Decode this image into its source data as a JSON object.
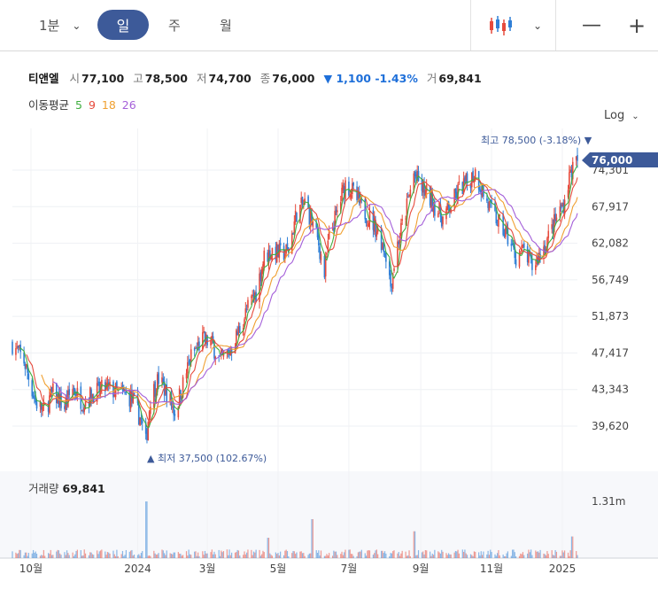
{
  "toolbar": {
    "interval": "1분",
    "period_day": "일",
    "period_week": "주",
    "period_month": "월",
    "chart_type_icon": "candlestick-icon",
    "zoom_out": "—",
    "zoom_in": "+"
  },
  "quote": {
    "name": "티앤엘",
    "open_label": "시",
    "open": "77,100",
    "high_label": "고",
    "high": "78,500",
    "low_label": "저",
    "low": "74,700",
    "close_label": "종",
    "close": "76,000",
    "change": "▼ 1,100 -1.43%",
    "volume_label": "거",
    "volume": "69,841"
  },
  "ma": {
    "label": "이동평균",
    "periods": [
      "5",
      "9",
      "18",
      "26"
    ],
    "colors": [
      "#3fae3f",
      "#e64a3c",
      "#f0a030",
      "#a45fd9"
    ]
  },
  "scale": "Log",
  "colors": {
    "up": "#e64a3c",
    "down": "#2f7fd6",
    "accent": "#3d5a99"
  },
  "annotations": {
    "high": "최고 78,500 (-3.18%) ▼",
    "low": "▲ 최저 37,500 (102.67%)",
    "last_price": "76,000"
  },
  "volume_panel": {
    "label": "거래량",
    "value": "69,841",
    "axis_max": "1.31m"
  },
  "chart_data": {
    "type": "candlestick",
    "title": "",
    "log_scale": true,
    "y_ticks": [
      39620,
      43343,
      47417,
      51873,
      56749,
      62082,
      67917,
      74301
    ],
    "y_tick_labels": [
      "39,620",
      "43,343",
      "47,417",
      "51,873",
      "56,749",
      "62,082",
      "67,917",
      "74,301"
    ],
    "x_labels": [
      "10월",
      "2024",
      "3월",
      "5월",
      "7월",
      "9월",
      "11월",
      "2025"
    ],
    "x_label_dates": [
      "2023-10-01",
      "2024-01-01",
      "2024-03-01",
      "2024-05-01",
      "2024-07-01",
      "2024-09-01",
      "2024-11-01",
      "2025-01-01"
    ],
    "date_range": [
      "2023-09-15",
      "2025-01-14"
    ],
    "close_points": [
      [
        "2023-09-15",
        48500
      ],
      [
        "2023-09-25",
        46500
      ],
      [
        "2023-10-05",
        42000
      ],
      [
        "2023-10-12",
        41200
      ],
      [
        "2023-10-20",
        43000
      ],
      [
        "2023-10-30",
        41500
      ],
      [
        "2023-11-06",
        43500
      ],
      [
        "2023-11-15",
        42000
      ],
      [
        "2023-11-24",
        43000
      ],
      [
        "2023-12-05",
        43500
      ],
      [
        "2023-12-15",
        43000
      ],
      [
        "2023-12-26",
        42500
      ],
      [
        "2024-01-03",
        40500
      ],
      [
        "2024-01-08",
        38000
      ],
      [
        "2024-01-12",
        42500
      ],
      [
        "2024-01-19",
        44500
      ],
      [
        "2024-01-26",
        43000
      ],
      [
        "2024-02-02",
        41000
      ],
      [
        "2024-02-08",
        43500
      ],
      [
        "2024-02-16",
        47000
      ],
      [
        "2024-02-26",
        49000
      ],
      [
        "2024-03-05",
        48500
      ],
      [
        "2024-03-12",
        46500
      ],
      [
        "2024-03-20",
        47500
      ],
      [
        "2024-03-28",
        50000
      ],
      [
        "2024-04-05",
        53000
      ],
      [
        "2024-04-12",
        55000
      ],
      [
        "2024-04-19",
        60000
      ],
      [
        "2024-04-26",
        61000
      ],
      [
        "2024-05-03",
        60500
      ],
      [
        "2024-05-10",
        61000
      ],
      [
        "2024-05-17",
        67000
      ],
      [
        "2024-05-24",
        68500
      ],
      [
        "2024-05-31",
        65000
      ],
      [
        "2024-06-05",
        62000
      ],
      [
        "2024-06-10",
        57500
      ],
      [
        "2024-06-14",
        63000
      ],
      [
        "2024-06-21",
        67000
      ],
      [
        "2024-06-28",
        72000
      ],
      [
        "2024-07-04",
        70500
      ],
      [
        "2024-07-11",
        68000
      ],
      [
        "2024-07-19",
        66000
      ],
      [
        "2024-07-26",
        64000
      ],
      [
        "2024-08-02",
        60500
      ],
      [
        "2024-08-06",
        56000
      ],
      [
        "2024-08-12",
        62000
      ],
      [
        "2024-08-19",
        67000
      ],
      [
        "2024-08-26",
        73500
      ],
      [
        "2024-09-02",
        71000
      ],
      [
        "2024-09-10",
        69000
      ],
      [
        "2024-09-20",
        66000
      ],
      [
        "2024-09-27",
        68000
      ],
      [
        "2024-10-04",
        71000
      ],
      [
        "2024-10-11",
        72000
      ],
      [
        "2024-10-18",
        74000
      ],
      [
        "2024-10-25",
        70000
      ],
      [
        "2024-11-01",
        67000
      ],
      [
        "2024-11-08",
        65000
      ],
      [
        "2024-11-15",
        63000
      ],
      [
        "2024-11-22",
        60000
      ],
      [
        "2024-11-29",
        61000
      ],
      [
        "2024-12-06",
        58500
      ],
      [
        "2024-12-13",
        60500
      ],
      [
        "2024-12-20",
        63000
      ],
      [
        "2024-12-27",
        66000
      ],
      [
        "2025-01-03",
        69000
      ],
      [
        "2025-01-08",
        74000
      ],
      [
        "2025-01-14",
        76000
      ]
    ],
    "high": {
      "value": 78500,
      "date": "2025-01-13"
    },
    "low": {
      "value": 37500,
      "date": "2024-01-08"
    },
    "last": {
      "open": 77100,
      "high": 78500,
      "low": 74700,
      "close": 76000,
      "volume": 69841
    },
    "moving_averages": [
      5,
      9,
      18,
      26
    ],
    "volume": {
      "axis_max": 1310000,
      "spikes": [
        [
          "2024-01-08",
          1310000
        ],
        [
          "2024-05-31",
          900000
        ],
        [
          "2024-08-26",
          620000
        ],
        [
          "2024-04-22",
          470000
        ],
        [
          "2025-01-10",
          500000
        ]
      ]
    }
  }
}
